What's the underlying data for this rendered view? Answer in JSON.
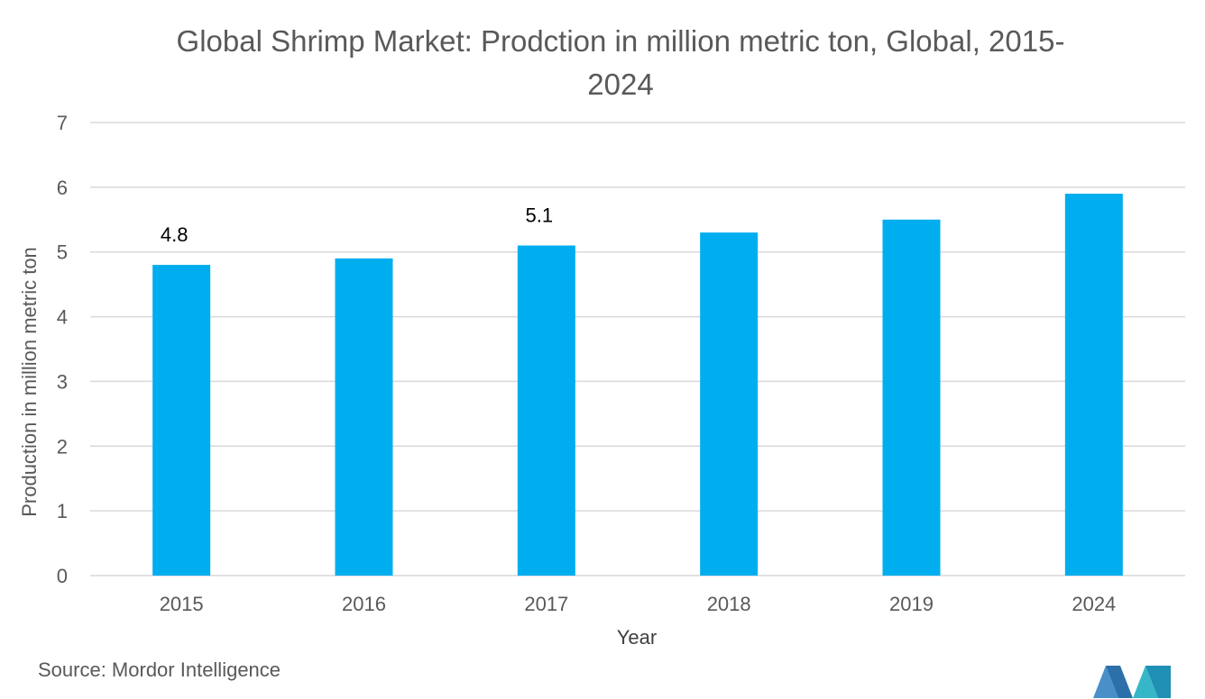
{
  "title_line1": "Global Shrimp Market: Prodction in million metric ton, Global, 2015-",
  "title_line2": "2024",
  "source": "Source: Mordor Intelligence",
  "colors": {
    "bar": "#00AEEF",
    "grid": "#D9D9D9",
    "axis_text": "#595959",
    "label_text": "#000000"
  },
  "chart_data": {
    "type": "bar",
    "categories": [
      "2015",
      "2016",
      "2017",
      "2018",
      "2019",
      "2024"
    ],
    "values": [
      4.8,
      4.9,
      5.1,
      5.3,
      5.5,
      5.9
    ],
    "data_labels": [
      "4.8",
      "",
      "5.1",
      "",
      "",
      ""
    ],
    "xlabel": "Year",
    "ylabel": "Production in million metric ton",
    "ylim": [
      0,
      7
    ],
    "yticks": [
      "0",
      "1",
      "2",
      "3",
      "4",
      "5",
      "6",
      "7"
    ],
    "grid": true,
    "legend": "none"
  }
}
